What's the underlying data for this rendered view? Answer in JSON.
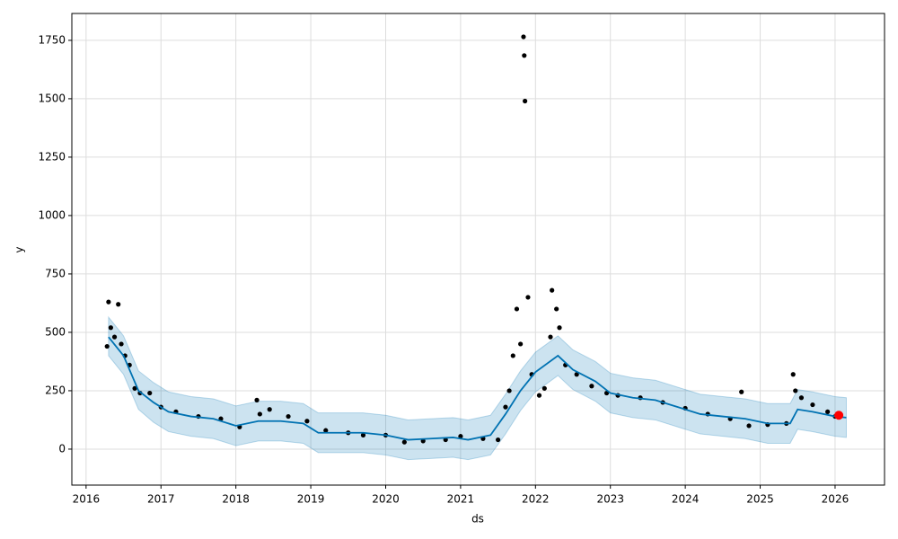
{
  "chart_data": {
    "type": "line",
    "xlabel": "ds",
    "ylabel": "y",
    "xlim": [
      2015.81,
      2026.66
    ],
    "ylim": [
      -154,
      1865
    ],
    "xticks": [
      2016,
      2017,
      2018,
      2019,
      2020,
      2021,
      2022,
      2023,
      2024,
      2025,
      2026
    ],
    "yticks": [
      0,
      250,
      500,
      750,
      1000,
      1250,
      1500,
      1750
    ],
    "grid": true,
    "x": [
      2016.3,
      2016.5,
      2016.7,
      2016.9,
      2017.1,
      2017.4,
      2017.7,
      2018.0,
      2018.3,
      2018.6,
      2018.9,
      2019.1,
      2019.4,
      2019.7,
      2020.0,
      2020.3,
      2020.6,
      2020.9,
      2021.1,
      2021.4,
      2021.6,
      2021.8,
      2022.0,
      2022.3,
      2022.5,
      2022.8,
      2023.0,
      2023.3,
      2023.6,
      2023.9,
      2024.2,
      2024.5,
      2024.8,
      2025.1,
      2025.4,
      2025.5,
      2025.7,
      2026.0,
      2026.15
    ],
    "series": [
      {
        "color": "#0072B2",
        "values": [
          480,
          400,
          250,
          200,
          160,
          140,
          130,
          100,
          120,
          120,
          110,
          70,
          70,
          70,
          60,
          40,
          45,
          50,
          40,
          60,
          150,
          250,
          330,
          400,
          340,
          290,
          240,
          220,
          210,
          180,
          150,
          140,
          130,
          110,
          110,
          170,
          160,
          140,
          135
        ]
      }
    ],
    "band": {
      "color": "#0072B2",
      "lower": [
        400,
        320,
        170,
        115,
        75,
        55,
        45,
        15,
        35,
        35,
        25,
        -15,
        -15,
        -15,
        -25,
        -45,
        -40,
        -35,
        -45,
        -25,
        65,
        165,
        245,
        315,
        255,
        205,
        155,
        135,
        125,
        95,
        65,
        55,
        45,
        25,
        25,
        85,
        75,
        55,
        50
      ],
      "upper": [
        565,
        485,
        335,
        285,
        245,
        225,
        215,
        185,
        205,
        205,
        195,
        155,
        155,
        155,
        145,
        125,
        130,
        135,
        125,
        145,
        235,
        335,
        415,
        485,
        425,
        375,
        325,
        305,
        295,
        265,
        235,
        225,
        215,
        195,
        195,
        255,
        245,
        225,
        220
      ]
    },
    "points": {
      "color": "#000000",
      "x": [
        2016.28,
        2016.3,
        2016.33,
        2016.38,
        2016.43,
        2016.47,
        2016.52,
        2016.58,
        2016.65,
        2016.72,
        2016.85,
        2017.0,
        2017.2,
        2017.5,
        2017.8,
        2018.05,
        2018.28,
        2018.32,
        2018.45,
        2018.7,
        2018.95,
        2019.2,
        2019.5,
        2019.7,
        2020.0,
        2020.25,
        2020.5,
        2020.8,
        2021.0,
        2021.3,
        2021.5,
        2021.6,
        2021.65,
        2021.7,
        2021.75,
        2021.8,
        2021.84,
        2021.85,
        2021.86,
        2021.9,
        2021.95,
        2022.05,
        2022.12,
        2022.2,
        2022.22,
        2022.28,
        2022.32,
        2022.4,
        2022.55,
        2022.75,
        2022.95,
        2023.1,
        2023.4,
        2023.7,
        2024.0,
        2024.3,
        2024.6,
        2024.75,
        2024.85,
        2025.1,
        2025.35,
        2025.44,
        2025.47,
        2025.55,
        2025.7,
        2025.9,
        2026.0
      ],
      "values": [
        440,
        630,
        520,
        480,
        620,
        450,
        400,
        360,
        260,
        240,
        240,
        180,
        160,
        140,
        130,
        95,
        210,
        150,
        170,
        140,
        120,
        80,
        70,
        60,
        60,
        30,
        35,
        40,
        55,
        45,
        40,
        180,
        250,
        400,
        600,
        450,
        1765,
        1685,
        1490,
        650,
        320,
        230,
        260,
        480,
        680,
        600,
        520,
        360,
        320,
        270,
        240,
        230,
        220,
        200,
        175,
        150,
        130,
        245,
        100,
        105,
        110,
        320,
        250,
        220,
        190,
        160,
        140
      ]
    },
    "highlight": {
      "color": "#ff0000",
      "x": [
        2026.05
      ],
      "values": [
        145
      ]
    }
  }
}
